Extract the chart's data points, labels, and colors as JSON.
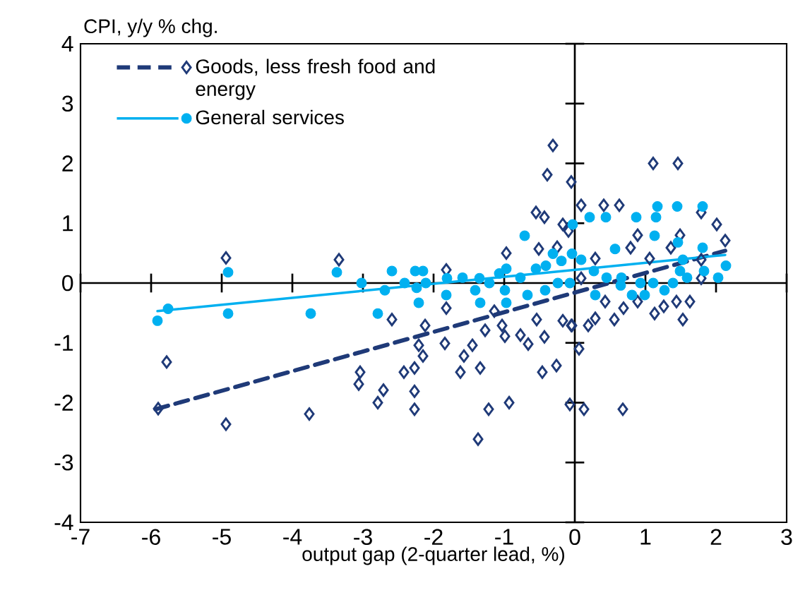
{
  "chart_data": {
    "type": "scatter",
    "ylabel": "CPI, y/y % chg.",
    "xlabel": "output gap (2-quarter lead, %)",
    "xlim": [
      -7,
      3
    ],
    "ylim": [
      -4,
      4
    ],
    "xticks": [
      -7,
      -6,
      -5,
      -4,
      -3,
      -2,
      -1,
      0,
      1,
      2,
      3
    ],
    "yticks": [
      -4,
      -3,
      -2,
      -1,
      0,
      1,
      2,
      3,
      4
    ],
    "legend": "top left",
    "series": [
      {
        "name": "Goods, less fresh food and energy",
        "marker": "diamond",
        "color": "#1f3a78",
        "x": [
          -4.94,
          -5.78,
          -5.9,
          -4.94,
          -3.76,
          -3.34,
          -0.31,
          -0.39,
          -0.05,
          0.09,
          -0.55,
          -0.43,
          -0.17,
          -0.09,
          -0.25,
          -0.51,
          -0.97,
          -1.82,
          -1.82,
          -2.59,
          -2.12,
          -1.14,
          -1.03,
          -1.27,
          -0.99,
          -0.77,
          -0.66,
          -0.54,
          -0.43,
          -0.17,
          -0.05,
          0.06,
          -2.21,
          -1.84,
          -1.45,
          -2.15,
          -1.57,
          -2.42,
          -2.27,
          -3.04,
          -3.06,
          -2.71,
          -2.79,
          -2.27,
          -2.27,
          -1.62,
          -1.34,
          -1.22,
          -0.93,
          -1.37,
          -0.46,
          -0.26,
          -0.07,
          0.13,
          1.11,
          1.46,
          0.41,
          0.63,
          1.79,
          2.01,
          0.89,
          1.49,
          2.13,
          0.79,
          0.29,
          1.06,
          1.36,
          1.79,
          0.09,
          1.79,
          0.43,
          0.29,
          0.19,
          0.56,
          0.69,
          0.89,
          1.13,
          1.26,
          1.44,
          1.63,
          1.53,
          -0.04,
          0.68
        ],
        "values": [
          0.42,
          -1.32,
          -2.1,
          -2.36,
          -2.19,
          0.39,
          2.3,
          1.81,
          1.69,
          1.3,
          1.18,
          1.1,
          0.98,
          0.87,
          0.6,
          0.57,
          0.5,
          0.22,
          -0.42,
          -0.61,
          -0.71,
          -0.47,
          -0.71,
          -0.79,
          -0.89,
          -0.87,
          -1.02,
          -0.61,
          -0.9,
          -0.63,
          -0.71,
          -1.1,
          -1.04,
          -1.01,
          -1.04,
          -1.22,
          -1.22,
          -1.49,
          -1.42,
          -1.49,
          -1.69,
          -1.79,
          -2.0,
          -1.81,
          -2.11,
          -1.49,
          -1.42,
          -2.11,
          -2.0,
          -2.61,
          -1.49,
          -1.38,
          -2.03,
          -2.11,
          2.0,
          2.0,
          1.3,
          1.3,
          1.18,
          0.98,
          0.8,
          0.8,
          0.71,
          0.59,
          0.41,
          0.41,
          0.59,
          0.39,
          0.08,
          0.08,
          -0.31,
          -0.59,
          -0.71,
          -0.61,
          -0.42,
          -0.31,
          -0.51,
          -0.39,
          -0.31,
          -0.31,
          -0.61,
          -0.71,
          -2.11
        ]
      },
      {
        "type": "line",
        "line_style": "dashed",
        "color": "#1f3a78",
        "x": [
          -5.94,
          2.13
        ],
        "values": [
          -2.11,
          0.54
        ]
      },
      {
        "name": "General services",
        "marker": "circle",
        "color": "#00b0f0",
        "x": [
          -4.91,
          -3.37,
          -5.76,
          -5.91,
          -4.91,
          -3.74,
          -3.02,
          -2.59,
          -2.69,
          -2.79,
          -2.41,
          -2.26,
          -2.15,
          -2.24,
          -2.11,
          -2.21,
          -1.82,
          -1.81,
          -1.59,
          -1.35,
          -1.41,
          -1.34,
          -1.21,
          -1.07,
          -0.97,
          -0.99,
          -0.97,
          -0.71,
          -0.77,
          -0.67,
          -0.55,
          -0.41,
          -0.42,
          -0.31,
          -0.19,
          -0.24,
          -0.03,
          -0.04,
          -0.07,
          0.09,
          0.21,
          0.44,
          0.87,
          1.17,
          1.45,
          1.81,
          1.15,
          1.13,
          1.46,
          0.57,
          0.27,
          0.45,
          0.66,
          0.65,
          0.29,
          0.81,
          0.99,
          0.93,
          1.11,
          1.27,
          1.39,
          1.49,
          1.59,
          1.83,
          1.81,
          2.03,
          2.14,
          1.53
        ],
        "values": [
          0.18,
          0.18,
          -0.43,
          -0.63,
          -0.51,
          -0.51,
          0.0,
          0.2,
          -0.12,
          -0.51,
          0.0,
          0.2,
          0.2,
          -0.08,
          0.0,
          -0.33,
          -0.2,
          0.08,
          0.09,
          0.08,
          -0.12,
          -0.33,
          0.0,
          0.16,
          0.24,
          -0.12,
          -0.33,
          0.79,
          0.09,
          -0.2,
          0.24,
          0.29,
          -0.12,
          0.49,
          0.37,
          0.0,
          0.98,
          0.49,
          0.0,
          0.39,
          1.1,
          1.1,
          1.1,
          1.28,
          1.28,
          1.28,
          1.1,
          0.79,
          0.68,
          0.57,
          0.2,
          0.09,
          0.09,
          -0.04,
          -0.2,
          -0.2,
          -0.2,
          0.0,
          0.0,
          -0.12,
          0.0,
          0.2,
          0.09,
          0.2,
          0.59,
          0.09,
          0.29,
          0.39
        ]
      },
      {
        "type": "line",
        "line_style": "solid",
        "color": "#00b0f0",
        "x": [
          -5.91,
          2.13
        ],
        "values": [
          -0.47,
          0.47
        ]
      }
    ]
  }
}
